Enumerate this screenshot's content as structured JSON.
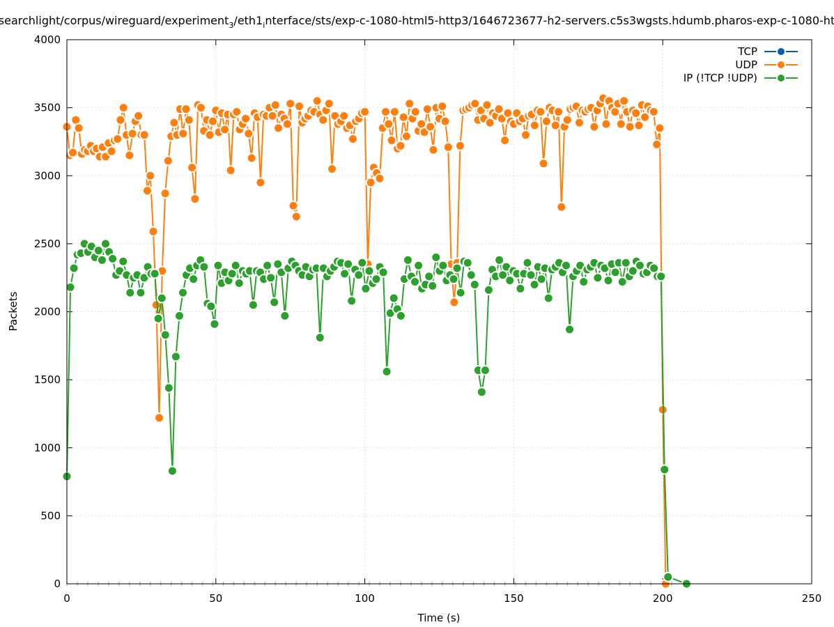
{
  "chart_data": {
    "type": "line",
    "title": "searchlight/corpus/wireguard/experiment_3/eth1_interface/sts/exp-c-1080-html5-http3/1646723677-h2-servers.c5s3wgsts.hdumb.pharos-exp-c-1080-ht",
    "title_parts": [
      "searchlight/corpus/wireguard/experiment",
      "3",
      "/eth1",
      "i",
      "nterface/sts/exp-c-1080-html5-http3/1646723677-h2-servers.c5s3wgsts.hdumb.pharos-exp-c-1080-ht"
    ],
    "xlabel": "Time (s)",
    "ylabel": "Packets",
    "xlim": [
      0,
      250
    ],
    "ylim": [
      0,
      4000
    ],
    "xticks": [
      0,
      50,
      100,
      150,
      200,
      250
    ],
    "yticks": [
      0,
      500,
      1000,
      1500,
      2000,
      2500,
      3000,
      3500,
      4000
    ],
    "grid": true,
    "legend": "top-right",
    "series": [
      {
        "name": "TCP",
        "color": "#0060ad",
        "x_start": 0,
        "x_step": 3.5,
        "values": [
          0,
          0,
          0,
          0,
          0,
          0,
          0,
          0,
          0,
          0,
          0,
          0,
          0,
          0,
          0,
          0,
          0,
          0,
          0,
          0,
          0,
          0,
          0,
          0,
          0,
          0,
          0,
          0,
          0,
          0,
          0,
          0,
          0,
          0,
          0,
          0,
          0,
          0,
          0,
          0,
          0,
          0,
          0,
          0,
          0,
          0,
          0,
          0,
          0,
          0,
          0,
          0,
          0,
          0,
          0,
          0,
          0,
          0,
          0,
          0
        ]
      },
      {
        "name": "UDP",
        "color": "#ff7f0e",
        "x_start": 0,
        "x_step": 1,
        "values": [
          3360,
          3150,
          3170,
          3410,
          3350,
          3160,
          3190,
          3180,
          3220,
          3180,
          3200,
          3140,
          3210,
          3140,
          3240,
          3180,
          3260,
          3270,
          3410,
          3500,
          3300,
          3150,
          3310,
          3400,
          3440,
          3300,
          3300,
          2890,
          3000,
          2590,
          2050,
          1220,
          2300,
          2870,
          3110,
          3290,
          3390,
          3300,
          3490,
          3310,
          3490,
          3410,
          3060,
          2830,
          3520,
          3500,
          3330,
          3410,
          3300,
          3400,
          3480,
          3320,
          3460,
          3340,
          3450,
          3040,
          3450,
          3470,
          3340,
          3380,
          3420,
          3310,
          3130,
          3460,
          3430,
          2950,
          3450,
          3440,
          3500,
          3440,
          3520,
          3350,
          3450,
          3420,
          3380,
          3530,
          2780,
          2700,
          3510,
          3390,
          3420,
          3440,
          3480,
          3470,
          3550,
          3450,
          3410,
          3480,
          3530,
          3050,
          3440,
          3380,
          3400,
          3440,
          3350,
          3370,
          3270,
          3400,
          3420,
          3460,
          3470,
          2350,
          2950,
          3060,
          3020,
          2980,
          3350,
          3470,
          3380,
          3260,
          3470,
          3200,
          3220,
          3430,
          3290,
          3530,
          3420,
          3470,
          3330,
          3380,
          3320,
          3490,
          3360,
          3190,
          3500,
          3420,
          3510,
          3400,
          3210,
          2350,
          2070,
          2360,
          3220,
          3480,
          3490,
          3500,
          3520,
          3530,
          3410,
          3480,
          3420,
          3520,
          3390,
          3460,
          3440,
          3490,
          3420,
          3260,
          3460,
          3400,
          3380,
          3460,
          3400,
          3420,
          3300,
          3440,
          3450,
          3370,
          3480,
          3470,
          3090,
          3400,
          3500,
          3480,
          3370,
          3470,
          2770,
          3360,
          3410,
          3490,
          3500,
          3510,
          3390,
          3480,
          3470,
          3490,
          3500,
          3360,
          3480,
          3530,
          3570,
          3380,
          3550,
          3500,
          3470,
          3530,
          3380,
          3550,
          3470,
          3360,
          3480,
          3460,
          3370,
          3520,
          3430,
          3510,
          3480,
          3470,
          3230,
          3350,
          1280,
          0
        ]
      },
      {
        "name": "IP (!TCP  !UDP)",
        "color": "#2ca02c",
        "x_start": 0,
        "x_step": 1.18,
        "values": [
          790,
          2180,
          2320,
          2420,
          2430,
          2500,
          2440,
          2480,
          2400,
          2450,
          2380,
          2500,
          2440,
          2390,
          2270,
          2300,
          2370,
          2270,
          2140,
          2250,
          2270,
          2140,
          2250,
          2330,
          2280,
          2280,
          1950,
          2100,
          1830,
          1440,
          830,
          1670,
          1970,
          2140,
          2270,
          2320,
          2240,
          2340,
          2380,
          2330,
          2060,
          2040,
          1910,
          2340,
          2210,
          2290,
          2230,
          2280,
          2340,
          2210,
          2300,
          2280,
          2300,
          2050,
          2300,
          2290,
          2240,
          2340,
          2250,
          2070,
          2350,
          2290,
          1970,
          2320,
          2370,
          2340,
          2300,
          2270,
          2330,
          2260,
          2310,
          2320,
          1810,
          2320,
          2260,
          2300,
          2330,
          2370,
          2360,
          2280,
          2350,
          2080,
          2310,
          2270,
          2360,
          2170,
          2300,
          2210,
          2240,
          2330,
          2290,
          1560,
          1990,
          2100,
          2020,
          1970,
          2240,
          2380,
          2260,
          2220,
          2340,
          2170,
          2200,
          2260,
          2190,
          2400,
          2300,
          2340,
          2230,
          2270,
          2240,
          2320,
          2140,
          2370,
          2360,
          2270,
          2200,
          1570,
          1410,
          1570,
          2160,
          2310,
          2260,
          2380,
          2270,
          2330,
          2230,
          2300,
          2280,
          2170,
          2280,
          2360,
          2270,
          2200,
          2330,
          2240,
          2320,
          2100,
          2310,
          2330,
          2360,
          2290,
          2340,
          1870,
          2260,
          2300,
          2340,
          2220,
          2310,
          2330,
          2360,
          2250,
          2340,
          2320,
          2230,
          2350,
          2290,
          2360,
          2220,
          2360,
          2260,
          2300,
          2370,
          2340,
          2280,
          2290,
          2340,
          2320,
          2260,
          2260,
          840,
          50
        ],
        "tail": [
          [
            208,
            0
          ]
        ]
      }
    ]
  }
}
